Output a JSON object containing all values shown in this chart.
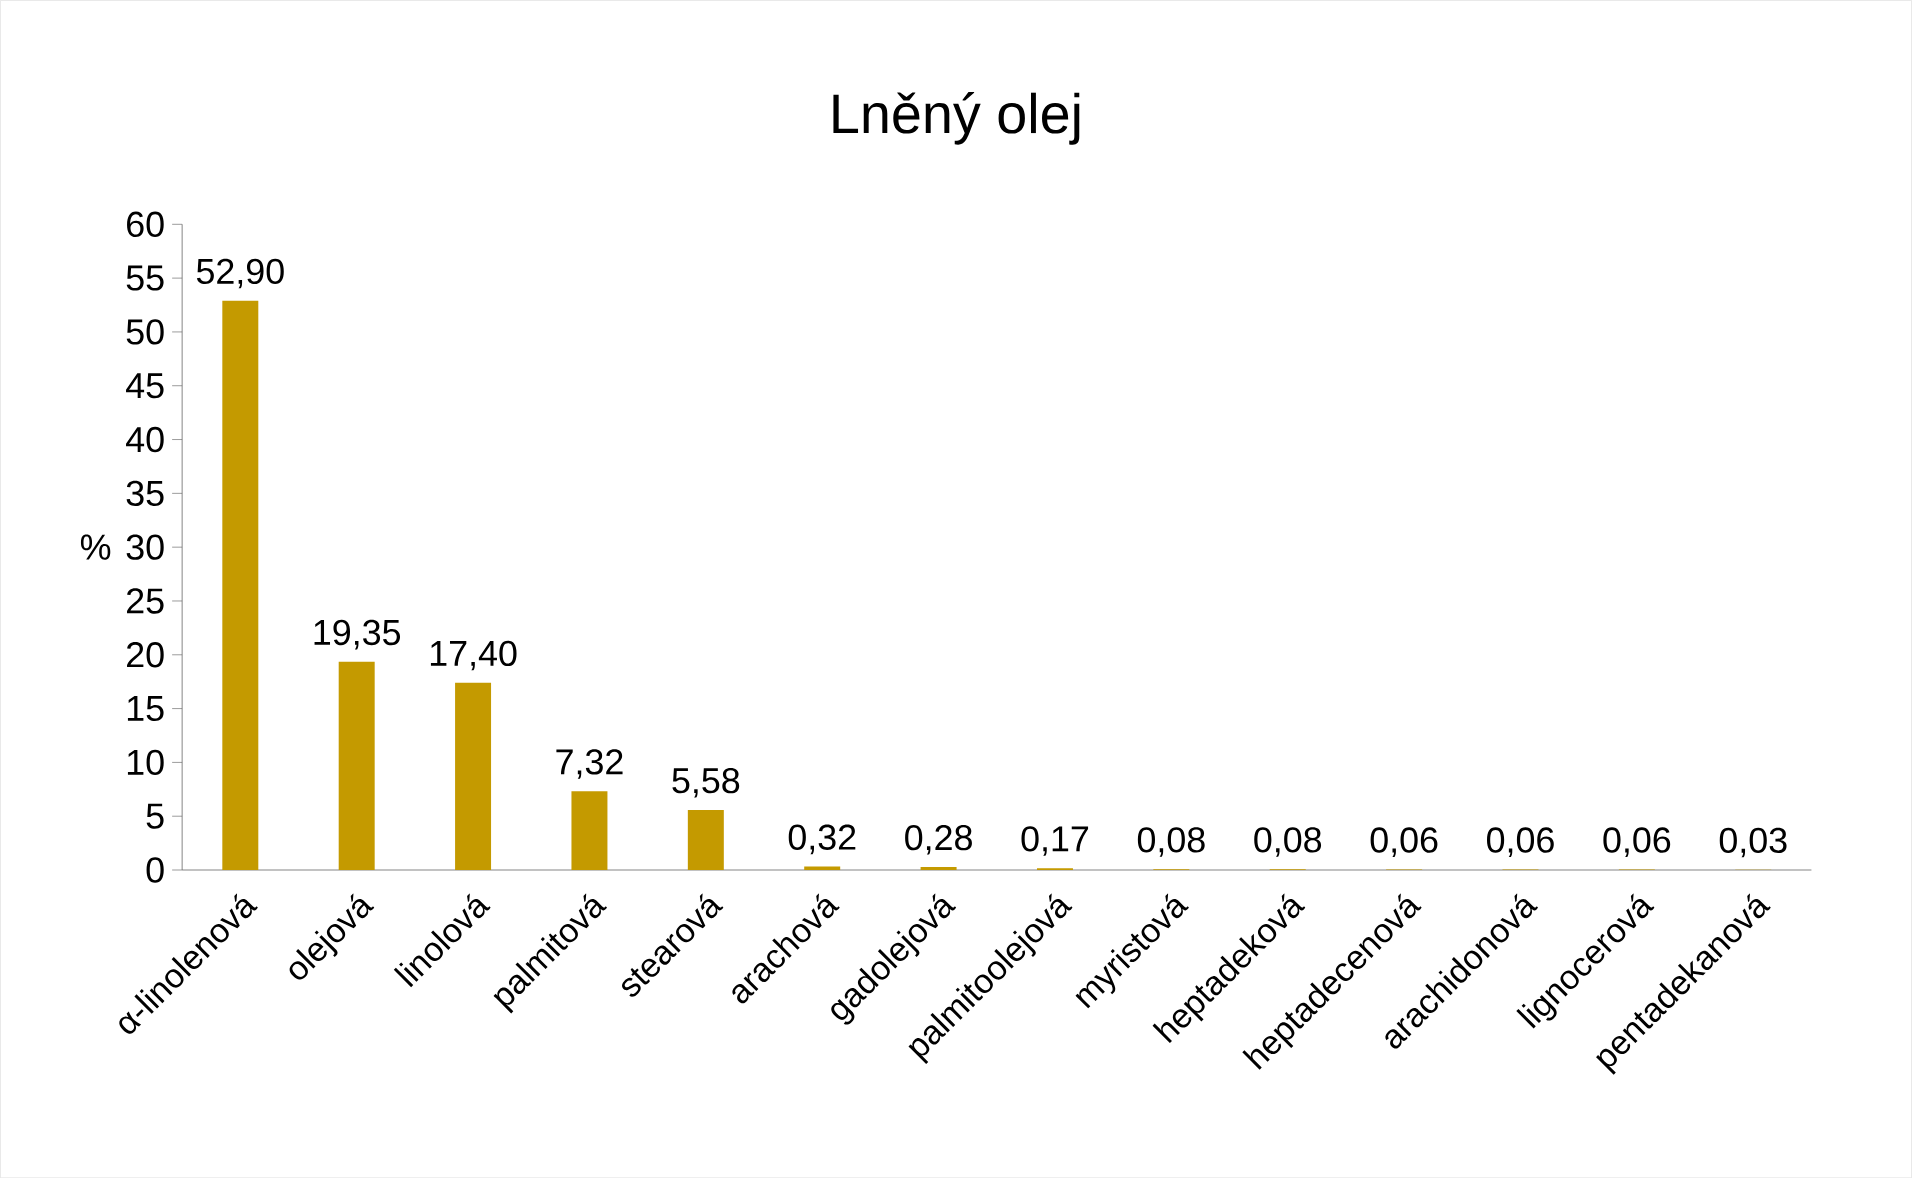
{
  "chart_data": {
    "type": "bar",
    "title": "Lněný olej",
    "ylabel": "%",
    "categories": [
      "α-linolenová",
      "olejová",
      "linolová",
      "palmitová",
      "stearová",
      "arachová",
      "gadolejová",
      "palmitoolejová",
      "myristová",
      "heptadeková",
      "heptadecenová",
      "arachidonová",
      "lignocerová",
      "pentadekanová"
    ],
    "values": [
      52.9,
      19.35,
      17.4,
      7.32,
      5.58,
      0.32,
      0.28,
      0.17,
      0.08,
      0.08,
      0.06,
      0.06,
      0.06,
      0.03
    ],
    "value_labels": [
      "52,90",
      "19,35",
      "17,40",
      "7,32",
      "5,58",
      "0,32",
      "0,28",
      "0,17",
      "0,08",
      "0,08",
      "0,06",
      "0,06",
      "0,06",
      "0,03"
    ],
    "color": "#c49a00",
    "ylim": [
      0,
      60
    ],
    "yticks": [
      0,
      5,
      10,
      15,
      20,
      25,
      30,
      35,
      40,
      45,
      50,
      55,
      60
    ]
  }
}
